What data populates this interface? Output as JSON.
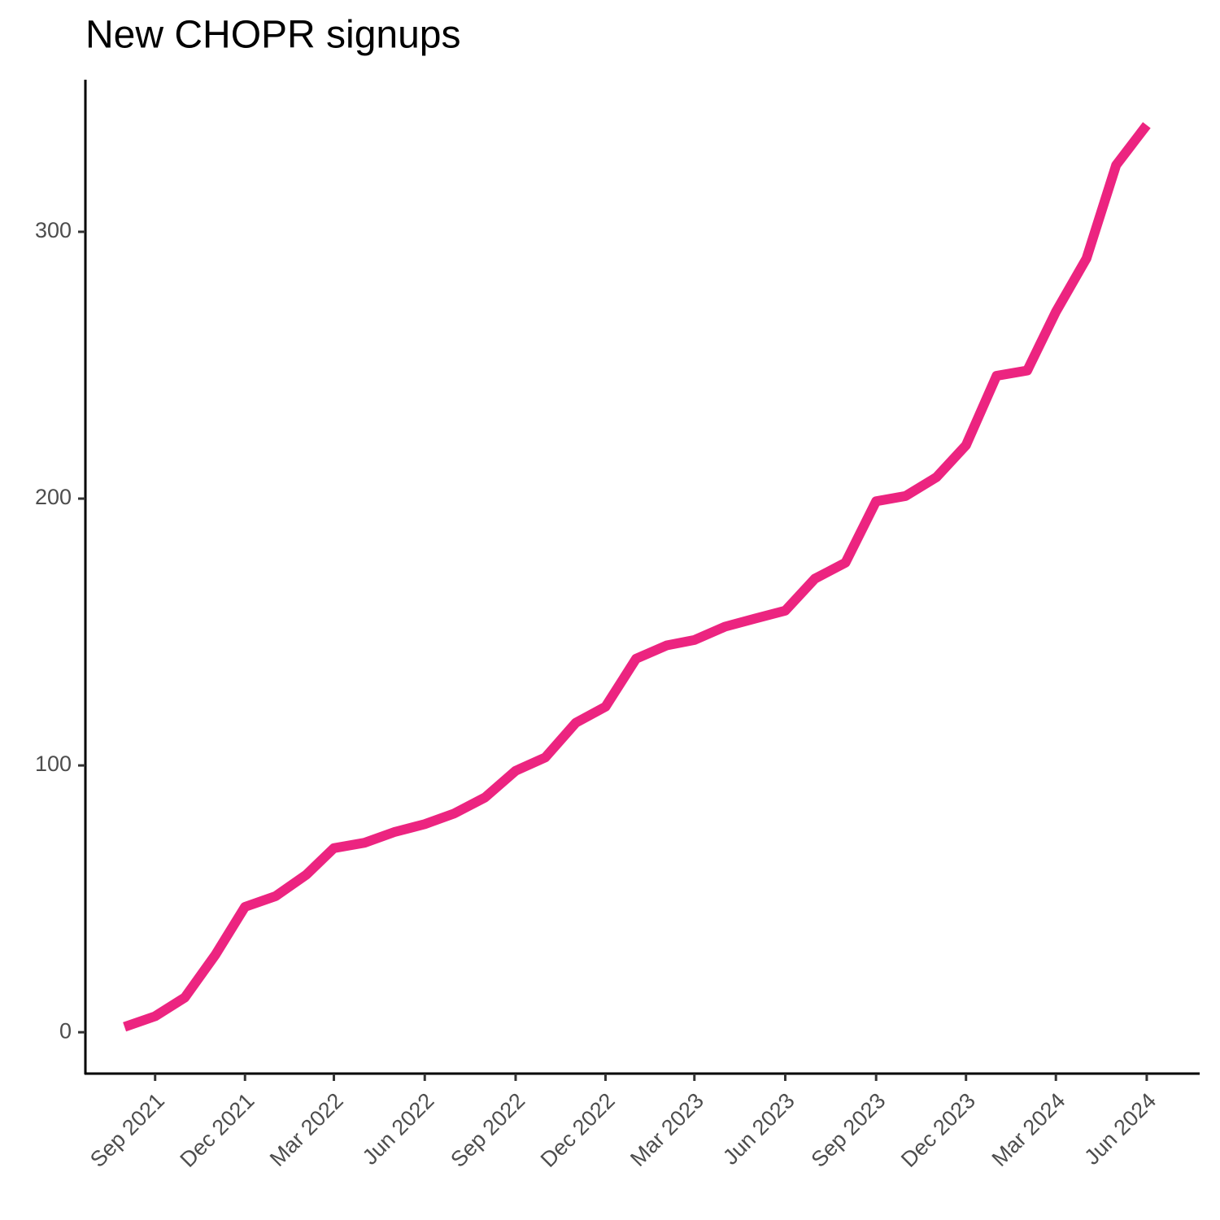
{
  "chart_data": {
    "type": "line",
    "title": "New CHOPR signups",
    "x": [
      "2021-08",
      "2021-09",
      "2021-10",
      "2021-11",
      "2021-12",
      "2022-01",
      "2022-02",
      "2022-03",
      "2022-04",
      "2022-05",
      "2022-06",
      "2022-07",
      "2022-08",
      "2022-09",
      "2022-10",
      "2022-11",
      "2022-12",
      "2023-01",
      "2023-02",
      "2023-03",
      "2023-04",
      "2023-05",
      "2023-06",
      "2023-07",
      "2023-08",
      "2023-09",
      "2023-10",
      "2023-11",
      "2023-12",
      "2024-01",
      "2024-02",
      "2024-03",
      "2024-04",
      "2024-05",
      "2024-06"
    ],
    "series": [
      {
        "name": "signups",
        "color": "#ec2480",
        "values": [
          2,
          6,
          13,
          29,
          47,
          51,
          59,
          69,
          71,
          75,
          78,
          82,
          88,
          98,
          103,
          116,
          122,
          140,
          145,
          147,
          152,
          155,
          158,
          170,
          176,
          199,
          201,
          208,
          220,
          246,
          248,
          270,
          290,
          325,
          340
        ]
      }
    ],
    "xlim": [
      "2021-06",
      "2024-08"
    ],
    "xticks": [
      {
        "value": "2021-09",
        "label": "Sep 2021"
      },
      {
        "value": "2021-12",
        "label": "Dec 2021"
      },
      {
        "value": "2022-03",
        "label": "Mar 2022"
      },
      {
        "value": "2022-06",
        "label": "Jun 2022"
      },
      {
        "value": "2022-09",
        "label": "Sep 2022"
      },
      {
        "value": "2022-12",
        "label": "Dec 2022"
      },
      {
        "value": "2023-03",
        "label": "Mar 2023"
      },
      {
        "value": "2023-06",
        "label": "Jun 2023"
      },
      {
        "value": "2023-09",
        "label": "Sep 2023"
      },
      {
        "value": "2023-12",
        "label": "Dec 2023"
      },
      {
        "value": "2024-03",
        "label": "Mar 2024"
      },
      {
        "value": "2024-06",
        "label": "Jun 2024"
      }
    ],
    "ylim": [
      -15.5,
      357
    ],
    "yticks": [
      0,
      100,
      200,
      300
    ],
    "grid": false
  }
}
